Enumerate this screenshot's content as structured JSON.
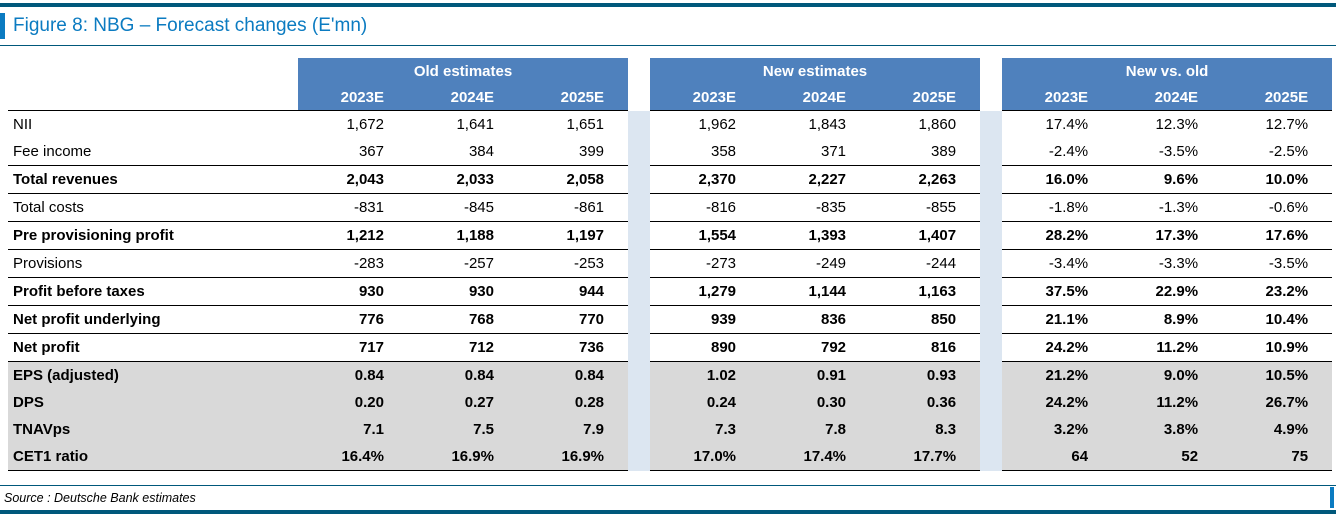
{
  "figure": {
    "title": "Figure 8: NBG – Forecast changes (E'mn)",
    "source_note": "Source : Deutsche Bank estimates"
  },
  "colors": {
    "header_blue": "#4F81BD",
    "spacer_blue": "#DCE6F1",
    "shaded_gray": "#D9D9D9",
    "title_blue": "#0B7BC1",
    "rule_blue": "#00587B"
  },
  "table": {
    "group_headers": [
      "Old estimates",
      "New estimates",
      "New vs. old"
    ],
    "year_headers": [
      "2023E",
      "2024E",
      "2025E"
    ],
    "rows": [
      {
        "label": "NII",
        "bold": false,
        "shaded": false,
        "line_below": false,
        "values": [
          "1,672",
          "1,641",
          "1,651",
          "1,962",
          "1,843",
          "1,860",
          "17.4%",
          "12.3%",
          "12.7%"
        ]
      },
      {
        "label": "Fee income",
        "bold": false,
        "shaded": false,
        "line_below": true,
        "values": [
          "367",
          "384",
          "399",
          "358",
          "371",
          "389",
          "-2.4%",
          "-3.5%",
          "-2.5%"
        ]
      },
      {
        "label": "Total revenues",
        "bold": true,
        "shaded": false,
        "line_below": true,
        "values": [
          "2,043",
          "2,033",
          "2,058",
          "2,370",
          "2,227",
          "2,263",
          "16.0%",
          "9.6%",
          "10.0%"
        ]
      },
      {
        "label": "Total costs",
        "bold": false,
        "shaded": false,
        "line_below": true,
        "values": [
          "-831",
          "-845",
          "-861",
          "-816",
          "-835",
          "-855",
          "-1.8%",
          "-1.3%",
          "-0.6%"
        ]
      },
      {
        "label": "Pre provisioning profit",
        "bold": true,
        "shaded": false,
        "line_below": true,
        "values": [
          "1,212",
          "1,188",
          "1,197",
          "1,554",
          "1,393",
          "1,407",
          "28.2%",
          "17.3%",
          "17.6%"
        ]
      },
      {
        "label": "Provisions",
        "bold": false,
        "shaded": false,
        "line_below": true,
        "values": [
          "-283",
          "-257",
          "-253",
          "-273",
          "-249",
          "-244",
          "-3.4%",
          "-3.3%",
          "-3.5%"
        ]
      },
      {
        "label": "Profit before taxes",
        "bold": true,
        "shaded": false,
        "line_below": true,
        "values": [
          "930",
          "930",
          "944",
          "1,279",
          "1,144",
          "1,163",
          "37.5%",
          "22.9%",
          "23.2%"
        ]
      },
      {
        "label": "Net profit underlying",
        "bold": true,
        "shaded": false,
        "line_below": true,
        "values": [
          "776",
          "768",
          "770",
          "939",
          "836",
          "850",
          "21.1%",
          "8.9%",
          "10.4%"
        ]
      },
      {
        "label": "Net profit",
        "bold": true,
        "shaded": false,
        "line_below": true,
        "values": [
          "717",
          "712",
          "736",
          "890",
          "792",
          "816",
          "24.2%",
          "11.2%",
          "10.9%"
        ]
      },
      {
        "label": "EPS (adjusted)",
        "bold": true,
        "shaded": true,
        "line_below": false,
        "values": [
          "0.84",
          "0.84",
          "0.84",
          "1.02",
          "0.91",
          "0.93",
          "21.2%",
          "9.0%",
          "10.5%"
        ]
      },
      {
        "label": "DPS",
        "bold": true,
        "shaded": true,
        "line_below": false,
        "values": [
          "0.20",
          "0.27",
          "0.28",
          "0.24",
          "0.30",
          "0.36",
          "24.2%",
          "11.2%",
          "26.7%"
        ]
      },
      {
        "label": "TNAVps",
        "bold": true,
        "shaded": true,
        "line_below": false,
        "values": [
          "7.1",
          "7.5",
          "7.9",
          "7.3",
          "7.8",
          "8.3",
          "3.2%",
          "3.8%",
          "4.9%"
        ]
      },
      {
        "label": "CET1 ratio",
        "bold": true,
        "shaded": true,
        "line_below": true,
        "values": [
          "16.4%",
          "16.9%",
          "16.9%",
          "17.0%",
          "17.4%",
          "17.7%",
          "64",
          "52",
          "75"
        ]
      }
    ]
  }
}
